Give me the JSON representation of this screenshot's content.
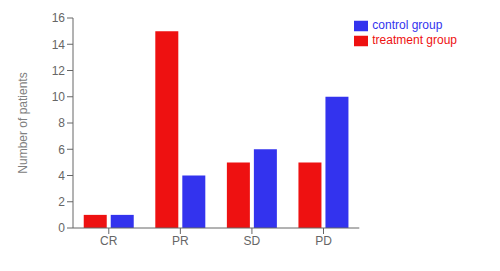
{
  "chart_data": {
    "type": "bar",
    "categories": [
      "CR",
      "PR",
      "SD",
      "PD"
    ],
    "series": [
      {
        "name": "treatment group",
        "color": "#EE1111",
        "values": [
          1,
          15,
          5,
          5
        ]
      },
      {
        "name": "control group",
        "color": "#3333EE",
        "values": [
          1,
          4,
          6,
          10
        ]
      }
    ],
    "ylabel": "Number of patients",
    "ylim": [
      0,
      16
    ],
    "yticks": [
      0,
      2,
      4,
      6,
      8,
      10,
      12,
      14,
      16
    ],
    "grid": false,
    "legend": "upper right"
  }
}
